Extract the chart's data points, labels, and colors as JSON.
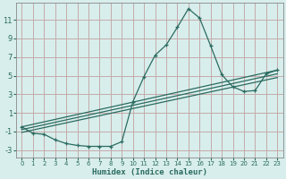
{
  "xlabel": "Humidex (Indice chaleur)",
  "bg_color": "#d8eeec",
  "grid_color": "#c4aaaa",
  "line_color": "#2a6b60",
  "spine_color": "#888888",
  "xlim": [
    -0.5,
    23.5
  ],
  "ylim": [
    -3.8,
    12.8
  ],
  "xticks": [
    0,
    1,
    2,
    3,
    4,
    5,
    6,
    7,
    8,
    9,
    10,
    11,
    12,
    13,
    14,
    15,
    16,
    17,
    18,
    19,
    20,
    21,
    22,
    23
  ],
  "yticks": [
    -3,
    -1,
    1,
    3,
    5,
    7,
    9,
    11
  ],
  "curve_main_x": [
    0,
    1,
    2,
    3,
    4,
    5,
    6,
    7,
    8,
    9,
    10,
    11,
    12,
    13,
    14,
    15,
    16,
    17,
    18,
    19,
    20,
    21,
    22,
    23
  ],
  "curve_main_y": [
    -0.5,
    -1.2,
    -1.3,
    -1.9,
    -2.3,
    -2.5,
    -2.6,
    -2.6,
    -2.6,
    -2.1,
    2.2,
    4.9,
    7.2,
    8.3,
    10.2,
    12.2,
    11.2,
    8.2,
    5.1,
    3.8,
    3.3,
    3.4,
    5.2,
    5.6
  ],
  "line1_x": [
    0,
    23
  ],
  "line1_y": [
    -0.5,
    5.6
  ],
  "line2_x": [
    0,
    23
  ],
  "line2_y": [
    -0.8,
    5.2
  ],
  "line3_x": [
    0,
    23
  ],
  "line3_y": [
    -1.1,
    4.8
  ]
}
